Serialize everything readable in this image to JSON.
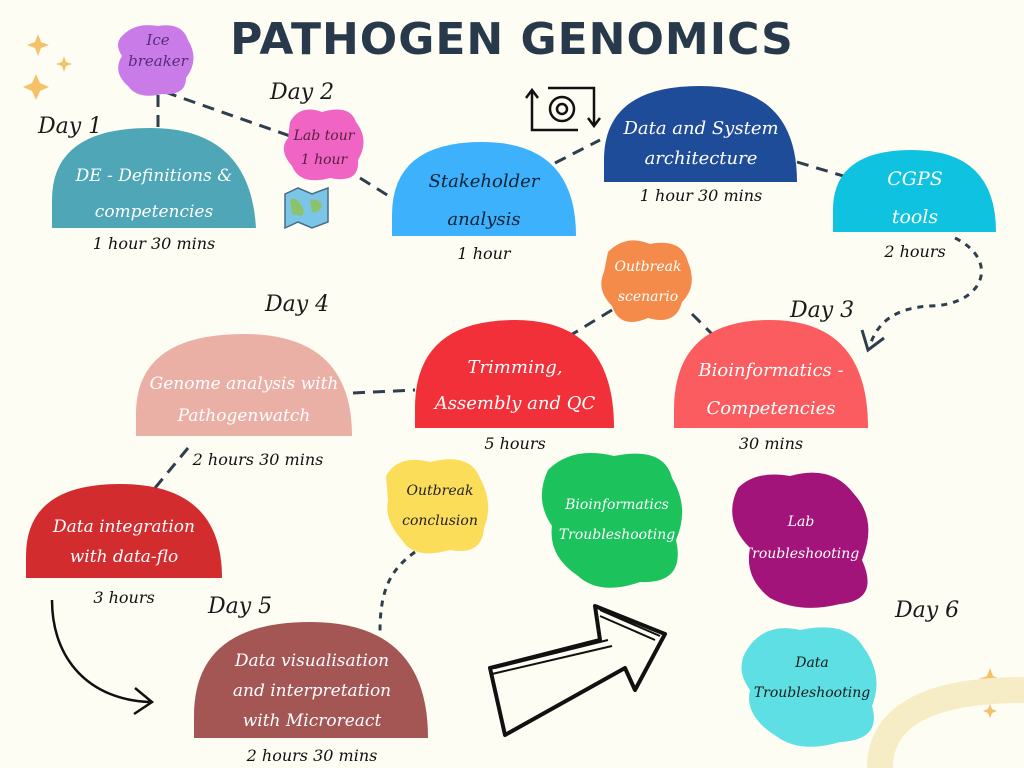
{
  "title": "PATHOGEN GENOMICS",
  "days": {
    "d1": "Day 1",
    "d2": "Day 2",
    "d3": "Day 3",
    "d4": "Day 4",
    "d5": "Day 5",
    "d6": "Day 6"
  },
  "nodes": {
    "ice_breaker": {
      "line1": "Ice",
      "line2": "breaker",
      "color": "#c97ce8"
    },
    "lab_tour": {
      "line1": "Lab tour",
      "line2": "1 hour",
      "color": "#f064c4"
    },
    "de_definitions": {
      "line1": "DE - Definitions &",
      "line2": "competencies",
      "duration": "1 hour 30 mins",
      "color": "#4ea6b7"
    },
    "stakeholder": {
      "line1": "Stakeholder",
      "line2": "analysis",
      "duration": "1 hour",
      "color": "#3db1fb"
    },
    "data_system": {
      "line1": "Data and System",
      "line2": "architecture",
      "duration": "1 hour 30 mins",
      "color": "#1f4c99"
    },
    "cgps": {
      "line1": "CGPS",
      "line2": "tools",
      "duration": "2 hours",
      "color": "#0fc3e0"
    },
    "outbreak_scenario": {
      "line1": "Outbreak",
      "line2": "scenario",
      "color": "#f48b4b"
    },
    "bioinf_competencies": {
      "line1": "Bioinformatics -",
      "line2": "Competencies",
      "duration": "30 mins",
      "color": "#fa5c5f"
    },
    "trimming": {
      "line1": "Trimming,",
      "line2": "Assembly and QC",
      "duration": "5 hours",
      "color": "#f2303a"
    },
    "genome_analysis": {
      "line1": "Genome analysis with",
      "line2": "Pathogenwatch",
      "duration": "2 hours 30 mins",
      "color": "#eab0a6"
    },
    "data_integration": {
      "line1": "Data integration",
      "line2": "with data-flo",
      "duration": "3 hours",
      "color": "#d32c2e"
    },
    "outbreak_conclusion": {
      "line1": "Outbreak",
      "line2": "conclusion",
      "color": "#fbdd5a"
    },
    "bioinf_troubleshooting": {
      "line1": "Bioinformatics",
      "line2": "Troubleshooting",
      "color": "#1cc35d"
    },
    "lab_troubleshooting": {
      "line1": "Lab",
      "line2": "Troubleshooting",
      "color": "#a3147a"
    },
    "data_visualisation": {
      "line1": "Data visualisation",
      "line2": "and interpretation",
      "line3": "with Microreact",
      "duration": "2 hours 30 mins",
      "color": "#a45655"
    },
    "data_troubleshooting": {
      "line1": "Data",
      "line2": "Troubleshooting",
      "color": "#5ddfe3"
    }
  },
  "icons": [
    "sparkle-icon",
    "gear-icon",
    "map-icon",
    "arrow-icon"
  ],
  "colors": {
    "background": "#fdfdf3",
    "title": "#27394a",
    "connector": "#2f3e4e",
    "sparkle": "#f5c26a"
  }
}
